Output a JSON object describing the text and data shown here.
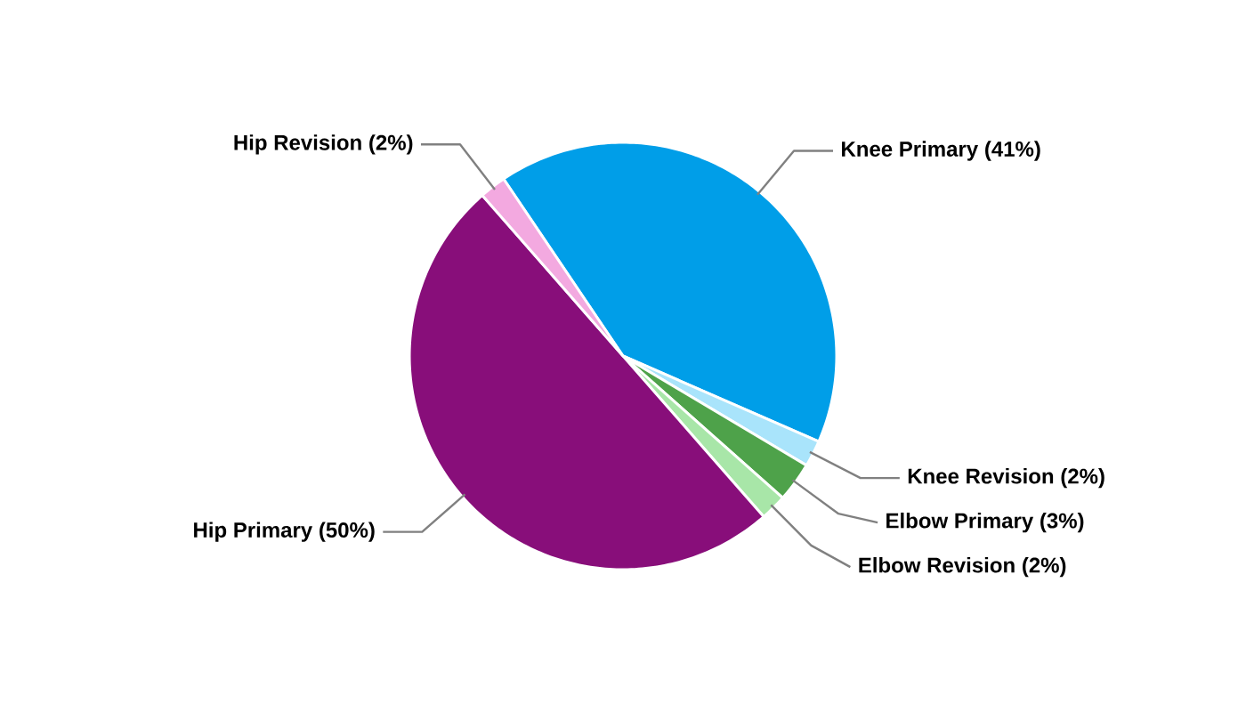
{
  "chart_data": {
    "type": "pie",
    "categories": [
      "Knee Primary",
      "Knee Revision",
      "Elbow Primary",
      "Elbow Revision",
      "Hip Primary",
      "Hip Revision"
    ],
    "values": [
      41,
      2,
      3,
      2,
      50,
      2
    ],
    "colors": [
      "#009ee8",
      "#a9e4fb",
      "#4ea24a",
      "#a8e6a8",
      "#880e7a",
      "#f3a9e0"
    ],
    "value_labels": [
      "(41%)",
      "(2%)",
      "(3%)",
      "(2%)",
      "(50%)",
      "(2%)"
    ]
  }
}
